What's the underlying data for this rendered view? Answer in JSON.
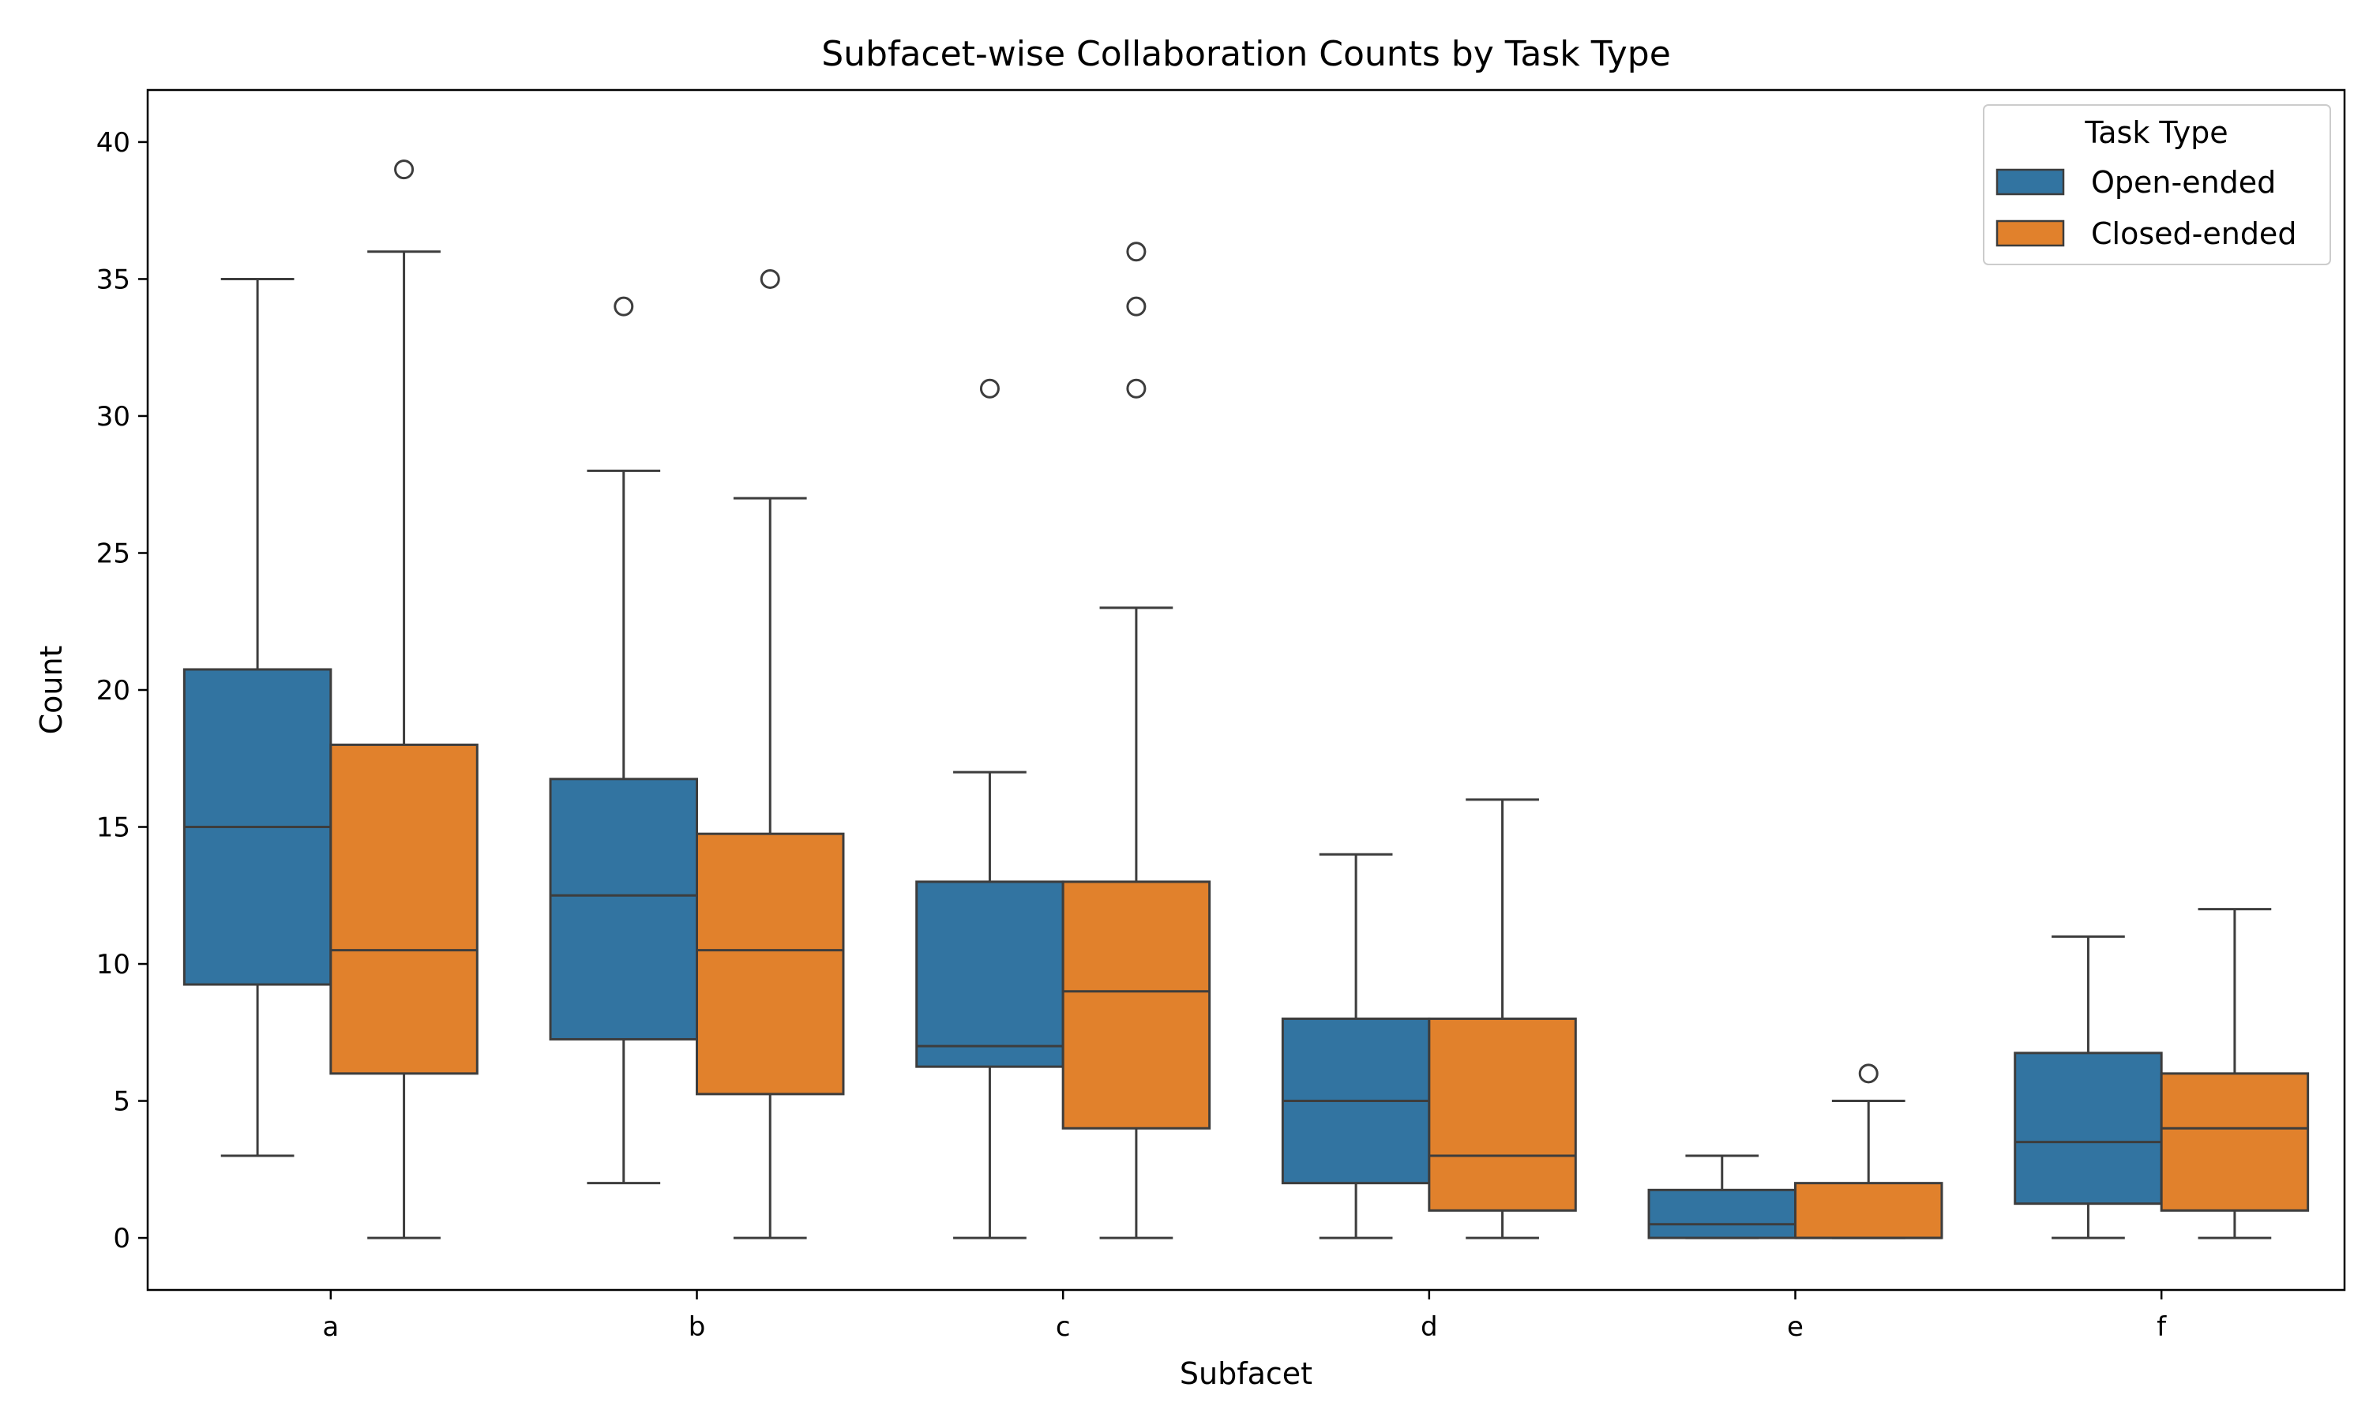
{
  "chart_data": {
    "type": "boxplot",
    "title": "Subfacet-wise Collaboration Counts by Task Type",
    "xlabel": "Subfacet",
    "ylabel": "Count",
    "categories": [
      "a",
      "b",
      "c",
      "d",
      "e",
      "f"
    ],
    "ylim": [
      -1.9,
      41.9
    ],
    "yticks": [
      0,
      5,
      10,
      15,
      20,
      25,
      30,
      35,
      40
    ],
    "grid": false,
    "legend": {
      "title": "Task Type",
      "placement": "top-right"
    },
    "series": [
      {
        "name": "Open-ended",
        "color": "#3274a1",
        "boxes": [
          {
            "whisker_low": 3,
            "q1": 9.25,
            "median": 15,
            "q3": 20.75,
            "whisker_high": 35,
            "outliers": []
          },
          {
            "whisker_low": 2,
            "q1": 7.25,
            "median": 12.5,
            "q3": 16.75,
            "whisker_high": 28,
            "outliers": [
              34
            ]
          },
          {
            "whisker_low": 0,
            "q1": 6.25,
            "median": 7,
            "q3": 13,
            "whisker_high": 17,
            "outliers": [
              31
            ]
          },
          {
            "whisker_low": 0,
            "q1": 2,
            "median": 5,
            "q3": 8,
            "whisker_high": 14,
            "outliers": []
          },
          {
            "whisker_low": 0,
            "q1": 0,
            "median": 0.5,
            "q3": 1.75,
            "whisker_high": 3,
            "outliers": []
          },
          {
            "whisker_low": 0,
            "q1": 1.25,
            "median": 3.5,
            "q3": 6.75,
            "whisker_high": 11,
            "outliers": []
          }
        ]
      },
      {
        "name": "Closed-ended",
        "color": "#e1812c",
        "boxes": [
          {
            "whisker_low": 0,
            "q1": 6,
            "median": 10.5,
            "q3": 18,
            "whisker_high": 36,
            "outliers": [
              39
            ]
          },
          {
            "whisker_low": 0,
            "q1": 5.25,
            "median": 10.5,
            "q3": 14.75,
            "whisker_high": 27,
            "outliers": [
              35
            ]
          },
          {
            "whisker_low": 0,
            "q1": 4,
            "median": 9,
            "q3": 13,
            "whisker_high": 23,
            "outliers": [
              31,
              34,
              36
            ]
          },
          {
            "whisker_low": 0,
            "q1": 1,
            "median": 3,
            "q3": 8,
            "whisker_high": 16,
            "outliers": []
          },
          {
            "whisker_low": 0,
            "q1": 0,
            "median": 0,
            "q3": 2,
            "whisker_high": 5,
            "outliers": [
              6
            ]
          },
          {
            "whisker_low": 0,
            "q1": 1,
            "median": 4,
            "q3": 6,
            "whisker_high": 12,
            "outliers": []
          }
        ]
      }
    ]
  }
}
